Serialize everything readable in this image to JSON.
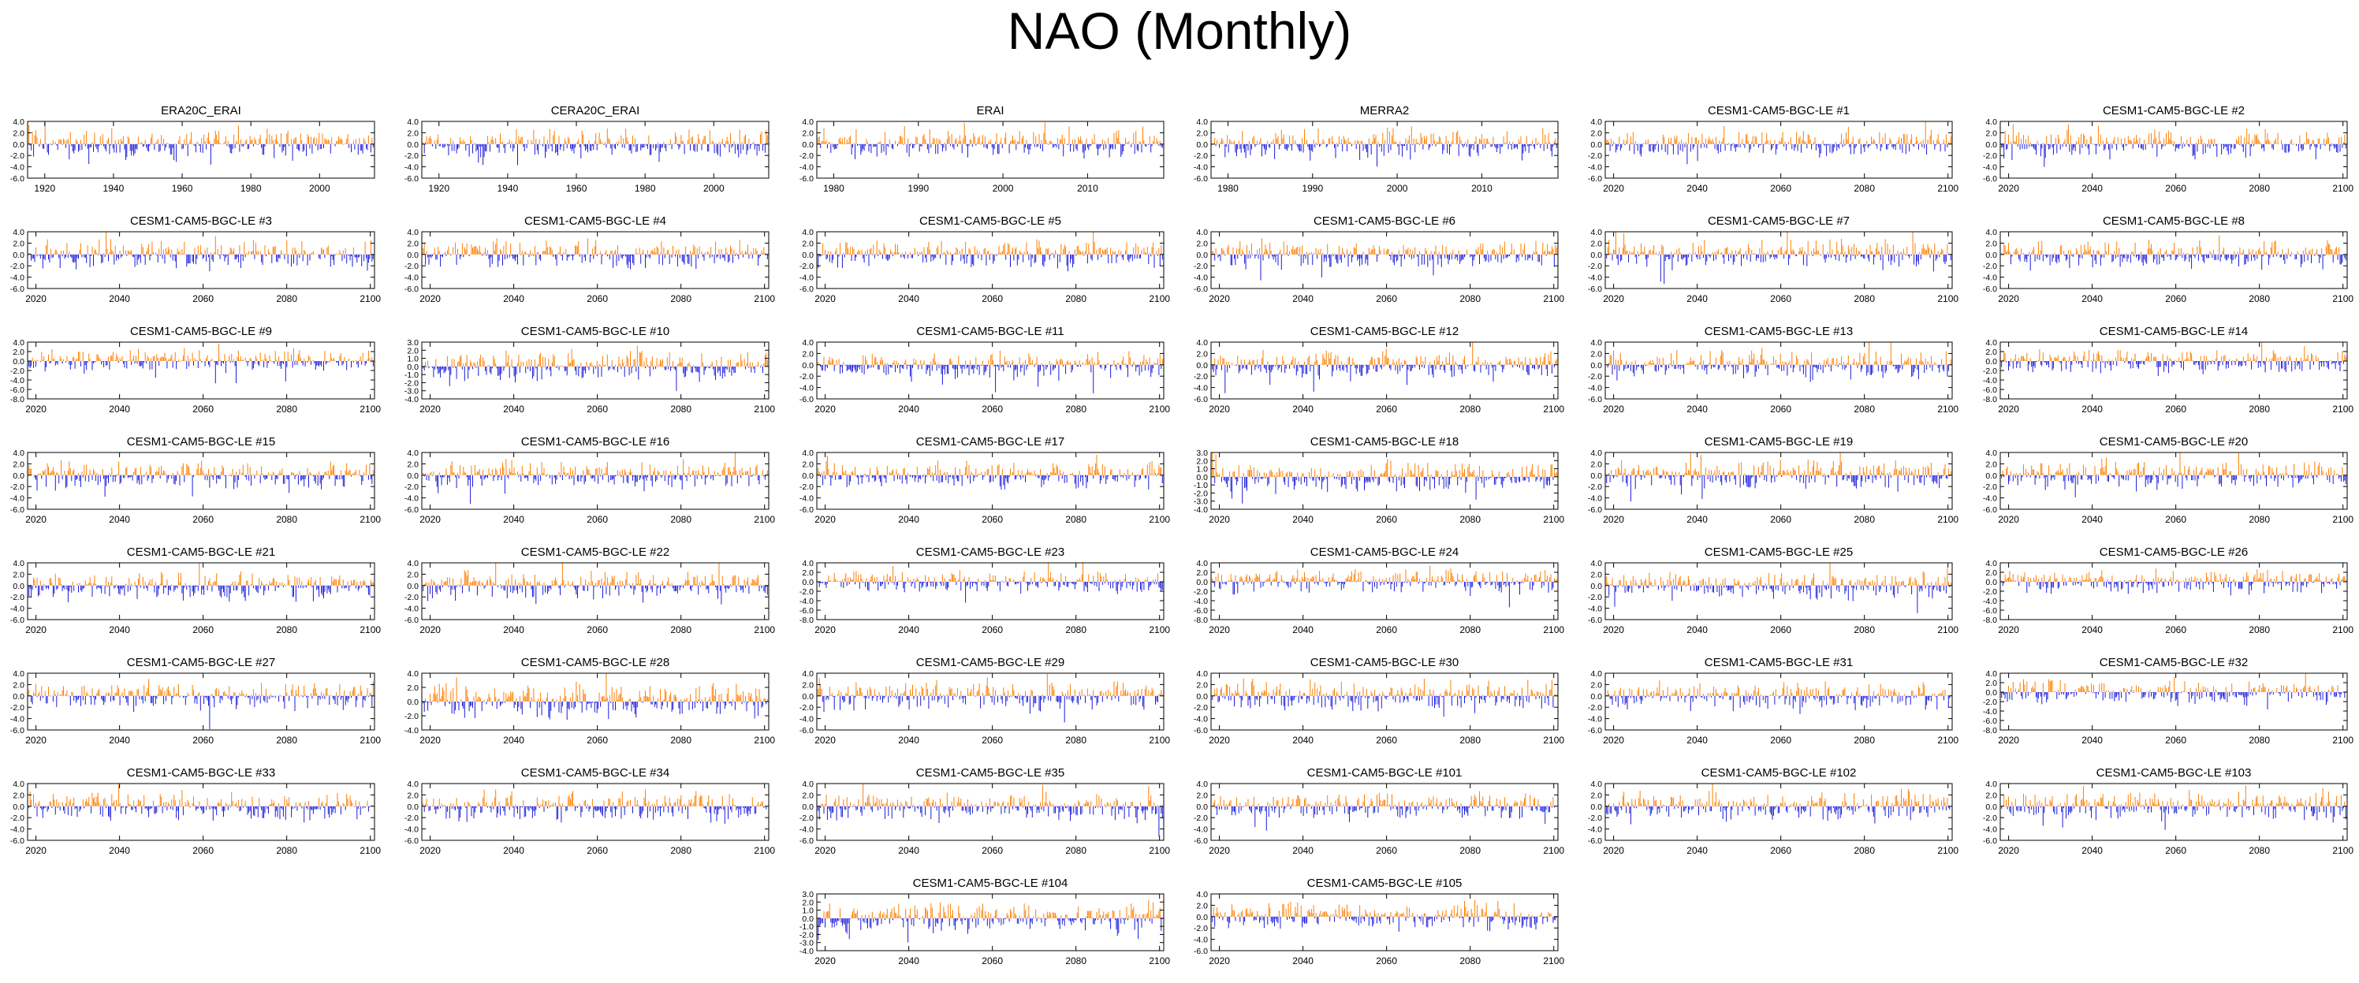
{
  "title": "NAO (Monthly)",
  "colors": {
    "positive": "#ff7f00",
    "negative": "#1a1adb",
    "axis": "#000000"
  },
  "chart_data": [
    {
      "type": "bar",
      "title": "ERA20C_ERAI",
      "xticks": [
        "1920",
        "1940",
        "1960",
        "1980",
        "2000"
      ],
      "xlim": [
        1915,
        2016
      ],
      "yticks": [
        "4.0",
        "2.0",
        "0.0",
        "-2.0",
        "-4.0",
        "-6.0"
      ],
      "ylim": [
        -6,
        4
      ],
      "seed": 1
    },
    {
      "type": "bar",
      "title": "CERA20C_ERAI",
      "xticks": [
        "1920",
        "1940",
        "1960",
        "1980",
        "2000"
      ],
      "xlim": [
        1915,
        2016
      ],
      "yticks": [
        "4.0",
        "2.0",
        "0.0",
        "-2.0",
        "-4.0",
        "-6.0"
      ],
      "ylim": [
        -6,
        4
      ],
      "seed": 2
    },
    {
      "type": "bar",
      "title": "ERAI",
      "xticks": [
        "1980",
        "1990",
        "2000",
        "2010"
      ],
      "xlim": [
        1978,
        2019
      ],
      "yticks": [
        "4.0",
        "2.0",
        "0.0",
        "-2.0",
        "-4.0",
        "-6.0"
      ],
      "ylim": [
        -6,
        4
      ],
      "seed": 3
    },
    {
      "type": "bar",
      "title": "MERRA2",
      "xticks": [
        "1980",
        "1990",
        "2000",
        "2010"
      ],
      "xlim": [
        1978,
        2019
      ],
      "yticks": [
        "4.0",
        "2.0",
        "0.0",
        "-2.0",
        "-4.0",
        "-6.0"
      ],
      "ylim": [
        -6,
        4
      ],
      "seed": 4
    },
    {
      "type": "bar",
      "title": "CESM1-CAM5-BGC-LE #1",
      "xticks": [
        "2020",
        "2040",
        "2060",
        "2080",
        "2100"
      ],
      "xlim": [
        2018,
        2101
      ],
      "yticks": [
        "4.0",
        "2.0",
        "0.0",
        "-2.0",
        "-4.0",
        "-6.0"
      ],
      "ylim": [
        -6,
        4
      ],
      "seed": 5
    },
    {
      "type": "bar",
      "title": "CESM1-CAM5-BGC-LE #2",
      "xticks": [
        "2020",
        "2040",
        "2060",
        "2080",
        "2100"
      ],
      "xlim": [
        2018,
        2101
      ],
      "yticks": [
        "4.0",
        "2.0",
        "0.0",
        "-2.0",
        "-4.0",
        "-6.0"
      ],
      "ylim": [
        -6,
        4
      ],
      "seed": 6
    },
    {
      "type": "bar",
      "title": "CESM1-CAM5-BGC-LE #3",
      "xticks": [
        "2020",
        "2040",
        "2060",
        "2080",
        "2100"
      ],
      "xlim": [
        2018,
        2101
      ],
      "yticks": [
        "4.0",
        "2.0",
        "0.0",
        "-2.0",
        "-4.0",
        "-6.0"
      ],
      "ylim": [
        -6,
        4
      ],
      "seed": 7
    },
    {
      "type": "bar",
      "title": "CESM1-CAM5-BGC-LE #4",
      "xticks": [
        "2020",
        "2040",
        "2060",
        "2080",
        "2100"
      ],
      "xlim": [
        2018,
        2101
      ],
      "yticks": [
        "4.0",
        "2.0",
        "0.0",
        "-2.0",
        "-4.0",
        "-6.0"
      ],
      "ylim": [
        -6,
        4
      ],
      "seed": 8
    },
    {
      "type": "bar",
      "title": "CESM1-CAM5-BGC-LE #5",
      "xticks": [
        "2020",
        "2040",
        "2060",
        "2080",
        "2100"
      ],
      "xlim": [
        2018,
        2101
      ],
      "yticks": [
        "4.0",
        "2.0",
        "0.0",
        "-2.0",
        "-4.0",
        "-6.0"
      ],
      "ylim": [
        -6,
        4
      ],
      "seed": 9
    },
    {
      "type": "bar",
      "title": "CESM1-CAM5-BGC-LE #6",
      "xticks": [
        "2020",
        "2040",
        "2060",
        "2080",
        "2100"
      ],
      "xlim": [
        2018,
        2101
      ],
      "yticks": [
        "4.0",
        "2.0",
        "0.0",
        "-2.0",
        "-4.0",
        "-6.0"
      ],
      "ylim": [
        -6,
        4
      ],
      "seed": 10
    },
    {
      "type": "bar",
      "title": "CESM1-CAM5-BGC-LE #7",
      "xticks": [
        "2020",
        "2040",
        "2060",
        "2080",
        "2100"
      ],
      "xlim": [
        2018,
        2101
      ],
      "yticks": [
        "4.0",
        "2.0",
        "0.0",
        "-2.0",
        "-4.0",
        "-6.0"
      ],
      "ylim": [
        -6,
        4
      ],
      "seed": 11
    },
    {
      "type": "bar",
      "title": "CESM1-CAM5-BGC-LE #8",
      "xticks": [
        "2020",
        "2040",
        "2060",
        "2080",
        "2100"
      ],
      "xlim": [
        2018,
        2101
      ],
      "yticks": [
        "4.0",
        "2.0",
        "0.0",
        "-2.0",
        "-4.0",
        "-6.0"
      ],
      "ylim": [
        -6,
        4
      ],
      "seed": 12
    },
    {
      "type": "bar",
      "title": "CESM1-CAM5-BGC-LE #9",
      "xticks": [
        "2020",
        "2040",
        "2060",
        "2080",
        "2100"
      ],
      "xlim": [
        2018,
        2101
      ],
      "yticks": [
        "4.0",
        "2.0",
        "0.0",
        "-2.0",
        "-4.0",
        "-6.0",
        "-8.0"
      ],
      "ylim": [
        -8,
        4
      ],
      "seed": 13
    },
    {
      "type": "bar",
      "title": "CESM1-CAM5-BGC-LE #10",
      "xticks": [
        "2020",
        "2040",
        "2060",
        "2080",
        "2100"
      ],
      "xlim": [
        2018,
        2101
      ],
      "yticks": [
        "3.0",
        "2.0",
        "1.0",
        "0.0",
        "-1.0",
        "-2.0",
        "-3.0",
        "-4.0"
      ],
      "ylim": [
        -4,
        3
      ],
      "seed": 14
    },
    {
      "type": "bar",
      "title": "CESM1-CAM5-BGC-LE #11",
      "xticks": [
        "2020",
        "2040",
        "2060",
        "2080",
        "2100"
      ],
      "xlim": [
        2018,
        2101
      ],
      "yticks": [
        "4.0",
        "2.0",
        "0.0",
        "-2.0",
        "-4.0",
        "-6.0"
      ],
      "ylim": [
        -6,
        4
      ],
      "seed": 15
    },
    {
      "type": "bar",
      "title": "CESM1-CAM5-BGC-LE #12",
      "xticks": [
        "2020",
        "2040",
        "2060",
        "2080",
        "2100"
      ],
      "xlim": [
        2018,
        2101
      ],
      "yticks": [
        "4.0",
        "2.0",
        "0.0",
        "-2.0",
        "-4.0",
        "-6.0"
      ],
      "ylim": [
        -6,
        4
      ],
      "seed": 16
    },
    {
      "type": "bar",
      "title": "CESM1-CAM5-BGC-LE #13",
      "xticks": [
        "2020",
        "2040",
        "2060",
        "2080",
        "2100"
      ],
      "xlim": [
        2018,
        2101
      ],
      "yticks": [
        "4.0",
        "2.0",
        "0.0",
        "-2.0",
        "-4.0",
        "-6.0"
      ],
      "ylim": [
        -6,
        4
      ],
      "seed": 17
    },
    {
      "type": "bar",
      "title": "CESM1-CAM5-BGC-LE #14",
      "xticks": [
        "2020",
        "2040",
        "2060",
        "2080",
        "2100"
      ],
      "xlim": [
        2018,
        2101
      ],
      "yticks": [
        "4.0",
        "2.0",
        "0.0",
        "-2.0",
        "-4.0",
        "-6.0",
        "-8.0"
      ],
      "ylim": [
        -8,
        4
      ],
      "seed": 18
    },
    {
      "type": "bar",
      "title": "CESM1-CAM5-BGC-LE #15",
      "xticks": [
        "2020",
        "2040",
        "2060",
        "2080",
        "2100"
      ],
      "xlim": [
        2018,
        2101
      ],
      "yticks": [
        "4.0",
        "2.0",
        "0.0",
        "-2.0",
        "-4.0",
        "-6.0"
      ],
      "ylim": [
        -6,
        4
      ],
      "seed": 19
    },
    {
      "type": "bar",
      "title": "CESM1-CAM5-BGC-LE #16",
      "xticks": [
        "2020",
        "2040",
        "2060",
        "2080",
        "2100"
      ],
      "xlim": [
        2018,
        2101
      ],
      "yticks": [
        "4.0",
        "2.0",
        "0.0",
        "-2.0",
        "-4.0",
        "-6.0"
      ],
      "ylim": [
        -6,
        4
      ],
      "seed": 20
    },
    {
      "type": "bar",
      "title": "CESM1-CAM5-BGC-LE #17",
      "xticks": [
        "2020",
        "2040",
        "2060",
        "2080",
        "2100"
      ],
      "xlim": [
        2018,
        2101
      ],
      "yticks": [
        "4.0",
        "2.0",
        "0.0",
        "-2.0",
        "-4.0",
        "-6.0"
      ],
      "ylim": [
        -6,
        4
      ],
      "seed": 21
    },
    {
      "type": "bar",
      "title": "CESM1-CAM5-BGC-LE #18",
      "xticks": [
        "2020",
        "2040",
        "2060",
        "2080",
        "2100"
      ],
      "xlim": [
        2018,
        2101
      ],
      "yticks": [
        "3.0",
        "2.0",
        "1.0",
        "0.0",
        "-1.0",
        "-2.0",
        "-3.0",
        "-4.0"
      ],
      "ylim": [
        -4,
        3
      ],
      "seed": 22
    },
    {
      "type": "bar",
      "title": "CESM1-CAM5-BGC-LE #19",
      "xticks": [
        "2020",
        "2040",
        "2060",
        "2080",
        "2100"
      ],
      "xlim": [
        2018,
        2101
      ],
      "yticks": [
        "4.0",
        "2.0",
        "0.0",
        "-2.0",
        "-4.0",
        "-6.0"
      ],
      "ylim": [
        -6,
        4
      ],
      "seed": 23
    },
    {
      "type": "bar",
      "title": "CESM1-CAM5-BGC-LE #20",
      "xticks": [
        "2020",
        "2040",
        "2060",
        "2080",
        "2100"
      ],
      "xlim": [
        2018,
        2101
      ],
      "yticks": [
        "4.0",
        "2.0",
        "0.0",
        "-2.0",
        "-4.0",
        "-6.0"
      ],
      "ylim": [
        -6,
        4
      ],
      "seed": 24
    },
    {
      "type": "bar",
      "title": "CESM1-CAM5-BGC-LE #21",
      "xticks": [
        "2020",
        "2040",
        "2060",
        "2080",
        "2100"
      ],
      "xlim": [
        2018,
        2101
      ],
      "yticks": [
        "4.0",
        "2.0",
        "0.0",
        "-2.0",
        "-4.0",
        "-6.0"
      ],
      "ylim": [
        -6,
        4
      ],
      "seed": 25
    },
    {
      "type": "bar",
      "title": "CESM1-CAM5-BGC-LE #22",
      "xticks": [
        "2020",
        "2040",
        "2060",
        "2080",
        "2100"
      ],
      "xlim": [
        2018,
        2101
      ],
      "yticks": [
        "4.0",
        "2.0",
        "0.0",
        "-2.0",
        "-4.0",
        "-6.0"
      ],
      "ylim": [
        -6,
        4
      ],
      "seed": 26
    },
    {
      "type": "bar",
      "title": "CESM1-CAM5-BGC-LE #23",
      "xticks": [
        "2020",
        "2040",
        "2060",
        "2080",
        "2100"
      ],
      "xlim": [
        2018,
        2101
      ],
      "yticks": [
        "4.0",
        "2.0",
        "0.0",
        "-2.0",
        "-4.0",
        "-6.0",
        "-8.0"
      ],
      "ylim": [
        -8,
        4
      ],
      "seed": 27
    },
    {
      "type": "bar",
      "title": "CESM1-CAM5-BGC-LE #24",
      "xticks": [
        "2020",
        "2040",
        "2060",
        "2080",
        "2100"
      ],
      "xlim": [
        2018,
        2101
      ],
      "yticks": [
        "4.0",
        "2.0",
        "0.0",
        "-2.0",
        "-4.0",
        "-6.0",
        "-8.0"
      ],
      "ylim": [
        -8,
        4
      ],
      "seed": 28
    },
    {
      "type": "bar",
      "title": "CESM1-CAM5-BGC-LE #25",
      "xticks": [
        "2020",
        "2040",
        "2060",
        "2080",
        "2100"
      ],
      "xlim": [
        2018,
        2101
      ],
      "yticks": [
        "4.0",
        "2.0",
        "0.0",
        "-2.0",
        "-4.0",
        "-6.0"
      ],
      "ylim": [
        -6,
        4
      ],
      "seed": 29
    },
    {
      "type": "bar",
      "title": "CESM1-CAM5-BGC-LE #26",
      "xticks": [
        "2020",
        "2040",
        "2060",
        "2080",
        "2100"
      ],
      "xlim": [
        2018,
        2101
      ],
      "yticks": [
        "4.0",
        "2.0",
        "0.0",
        "-2.0",
        "-4.0",
        "-6.0",
        "-8.0"
      ],
      "ylim": [
        -8,
        4
      ],
      "seed": 30
    },
    {
      "type": "bar",
      "title": "CESM1-CAM5-BGC-LE #27",
      "xticks": [
        "2020",
        "2040",
        "2060",
        "2080",
        "2100"
      ],
      "xlim": [
        2018,
        2101
      ],
      "yticks": [
        "4.0",
        "2.0",
        "0.0",
        "-2.0",
        "-4.0",
        "-6.0"
      ],
      "ylim": [
        -6,
        4
      ],
      "seed": 31
    },
    {
      "type": "bar",
      "title": "CESM1-CAM5-BGC-LE #28",
      "xticks": [
        "2020",
        "2040",
        "2060",
        "2080",
        "2100"
      ],
      "xlim": [
        2018,
        2101
      ],
      "yticks": [
        "4.0",
        "2.0",
        "0.0",
        "-2.0",
        "-4.0"
      ],
      "ylim": [
        -4,
        4
      ],
      "seed": 32
    },
    {
      "type": "bar",
      "title": "CESM1-CAM5-BGC-LE #29",
      "xticks": [
        "2020",
        "2040",
        "2060",
        "2080",
        "2100"
      ],
      "xlim": [
        2018,
        2101
      ],
      "yticks": [
        "4.0",
        "2.0",
        "0.0",
        "-2.0",
        "-4.0",
        "-6.0"
      ],
      "ylim": [
        -6,
        4
      ],
      "seed": 33
    },
    {
      "type": "bar",
      "title": "CESM1-CAM5-BGC-LE #30",
      "xticks": [
        "2020",
        "2040",
        "2060",
        "2080",
        "2100"
      ],
      "xlim": [
        2018,
        2101
      ],
      "yticks": [
        "4.0",
        "2.0",
        "0.0",
        "-2.0",
        "-4.0",
        "-6.0"
      ],
      "ylim": [
        -6,
        4
      ],
      "seed": 34
    },
    {
      "type": "bar",
      "title": "CESM1-CAM5-BGC-LE #31",
      "xticks": [
        "2020",
        "2040",
        "2060",
        "2080",
        "2100"
      ],
      "xlim": [
        2018,
        2101
      ],
      "yticks": [
        "4.0",
        "2.0",
        "0.0",
        "-2.0",
        "-4.0",
        "-6.0"
      ],
      "ylim": [
        -6,
        4
      ],
      "seed": 35
    },
    {
      "type": "bar",
      "title": "CESM1-CAM5-BGC-LE #32",
      "xticks": [
        "2020",
        "2040",
        "2060",
        "2080",
        "2100"
      ],
      "xlim": [
        2018,
        2101
      ],
      "yticks": [
        "4.0",
        "2.0",
        "0.0",
        "-2.0",
        "-4.0",
        "-6.0",
        "-8.0"
      ],
      "ylim": [
        -8,
        4
      ],
      "seed": 36
    },
    {
      "type": "bar",
      "title": "CESM1-CAM5-BGC-LE #33",
      "xticks": [
        "2020",
        "2040",
        "2060",
        "2080",
        "2100"
      ],
      "xlim": [
        2018,
        2101
      ],
      "yticks": [
        "4.0",
        "2.0",
        "0.0",
        "-2.0",
        "-4.0",
        "-6.0"
      ],
      "ylim": [
        -6,
        4
      ],
      "seed": 37
    },
    {
      "type": "bar",
      "title": "CESM1-CAM5-BGC-LE #34",
      "xticks": [
        "2020",
        "2040",
        "2060",
        "2080",
        "2100"
      ],
      "xlim": [
        2018,
        2101
      ],
      "yticks": [
        "4.0",
        "2.0",
        "0.0",
        "-2.0",
        "-4.0",
        "-6.0"
      ],
      "ylim": [
        -6,
        4
      ],
      "seed": 38
    },
    {
      "type": "bar",
      "title": "CESM1-CAM5-BGC-LE #35",
      "xticks": [
        "2020",
        "2040",
        "2060",
        "2080",
        "2100"
      ],
      "xlim": [
        2018,
        2101
      ],
      "yticks": [
        "4.0",
        "2.0",
        "0.0",
        "-2.0",
        "-4.0",
        "-6.0"
      ],
      "ylim": [
        -6,
        4
      ],
      "seed": 39
    },
    {
      "type": "bar",
      "title": "CESM1-CAM5-BGC-LE #101",
      "xticks": [
        "2020",
        "2040",
        "2060",
        "2080",
        "2100"
      ],
      "xlim": [
        2018,
        2101
      ],
      "yticks": [
        "4.0",
        "2.0",
        "0.0",
        "-2.0",
        "-4.0",
        "-6.0"
      ],
      "ylim": [
        -6,
        4
      ],
      "seed": 40
    },
    {
      "type": "bar",
      "title": "CESM1-CAM5-BGC-LE #102",
      "xticks": [
        "2020",
        "2040",
        "2060",
        "2080",
        "2100"
      ],
      "xlim": [
        2018,
        2101
      ],
      "yticks": [
        "4.0",
        "2.0",
        "0.0",
        "-2.0",
        "-4.0",
        "-6.0"
      ],
      "ylim": [
        -6,
        4
      ],
      "seed": 41
    },
    {
      "type": "bar",
      "title": "CESM1-CAM5-BGC-LE #103",
      "xticks": [
        "2020",
        "2040",
        "2060",
        "2080",
        "2100"
      ],
      "xlim": [
        2018,
        2101
      ],
      "yticks": [
        "4.0",
        "2.0",
        "0.0",
        "-2.0",
        "-4.0",
        "-6.0"
      ],
      "ylim": [
        -6,
        4
      ],
      "seed": 42
    },
    {
      "type": "bar",
      "title": "CESM1-CAM5-BGC-LE #104",
      "xticks": [
        "2020",
        "2040",
        "2060",
        "2080",
        "2100"
      ],
      "xlim": [
        2018,
        2101
      ],
      "yticks": [
        "3.0",
        "2.0",
        "1.0",
        "0.0",
        "-1.0",
        "-2.0",
        "-3.0",
        "-4.0"
      ],
      "ylim": [
        -4,
        3
      ],
      "seed": 43
    },
    {
      "type": "bar",
      "title": "CESM1-CAM5-BGC-LE #105",
      "xticks": [
        "2020",
        "2040",
        "2060",
        "2080",
        "2100"
      ],
      "xlim": [
        2018,
        2101
      ],
      "yticks": [
        "4.0",
        "2.0",
        "0.0",
        "-2.0",
        "-4.0",
        "-6.0"
      ],
      "ylim": [
        -6,
        4
      ],
      "seed": 44
    }
  ]
}
